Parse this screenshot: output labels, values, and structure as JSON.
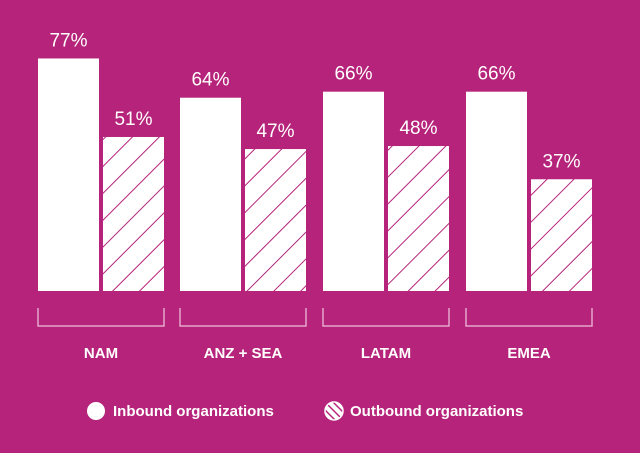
{
  "colors": {
    "background": "#B5237A",
    "bar": "#FFFFFF",
    "hatch": "#B5237A"
  },
  "chart_data": {
    "type": "bar",
    "categories": [
      "NAM",
      "ANZ + SEA",
      "LATAM",
      "EMEA"
    ],
    "series": [
      {
        "name": "Inbound organizations",
        "values": [
          77,
          64,
          66,
          66
        ],
        "style": "solid"
      },
      {
        "name": "Outbound organizations",
        "values": [
          51,
          47,
          48,
          37
        ],
        "style": "hatched"
      }
    ],
    "value_labels": [
      [
        "77%",
        "64%",
        "66%",
        "66%"
      ],
      [
        "51%",
        "47%",
        "48%",
        "37%"
      ]
    ],
    "unit": "%",
    "ylim": [
      0,
      100
    ],
    "grid": false,
    "legend_position": "bottom"
  }
}
